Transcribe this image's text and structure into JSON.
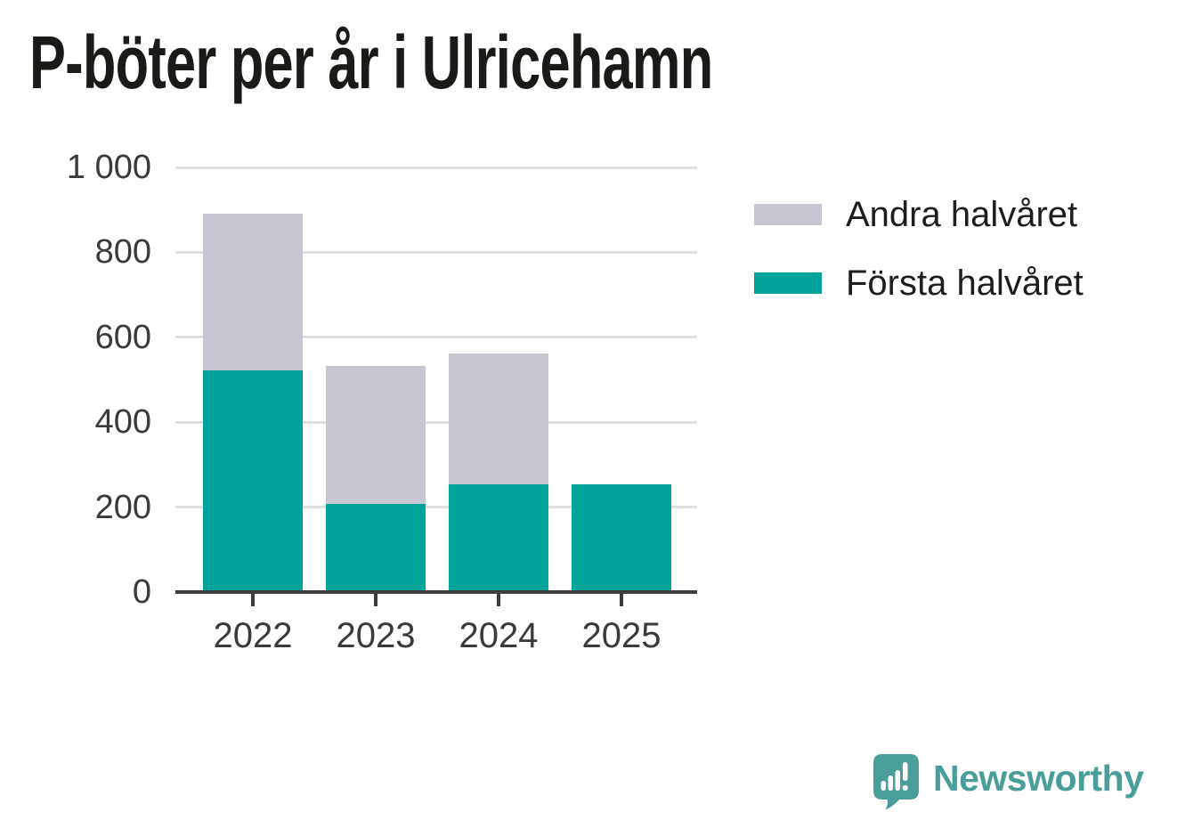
{
  "title": "P-böter per år i Ulricehamn",
  "legend": {
    "items": [
      {
        "label": "Andra halvåret",
        "color": "#c8c6d0"
      },
      {
        "label": "Första halvåret",
        "color": "#00a49b"
      }
    ]
  },
  "footer": {
    "brand": "Newsworthy",
    "logo_icon": "newsworthy-speech-bubble-chart-icon",
    "brand_color": "#4a9e9a"
  },
  "colors": {
    "first_half": "#00a49b",
    "second_half": "#c8c6d0",
    "gridline": "#e0e0e0",
    "axis": "#3d3d3d",
    "title_text": "#1a1a17",
    "tick_text": "#3a3a3a"
  },
  "chart_data": {
    "type": "bar",
    "stacked": true,
    "title": "P-böter per år i Ulricehamn",
    "categories": [
      "2022",
      "2023",
      "2024",
      "2025"
    ],
    "series": [
      {
        "name": "Första halvåret",
        "color": "#00a49b",
        "values": [
          523,
          208,
          254,
          254
        ]
      },
      {
        "name": "Andra halvåret",
        "color": "#c8c6d0",
        "values": [
          368,
          325,
          308,
          0
        ]
      }
    ],
    "xlabel": "",
    "ylabel": "",
    "ylim": [
      0,
      1000
    ],
    "yticks": [
      0,
      200,
      400,
      600,
      800,
      1000
    ],
    "ytick_labels": [
      "0",
      "200",
      "400",
      "600",
      "800",
      "1 000"
    ],
    "grid": "horizontal",
    "legend_position": "right-top"
  }
}
